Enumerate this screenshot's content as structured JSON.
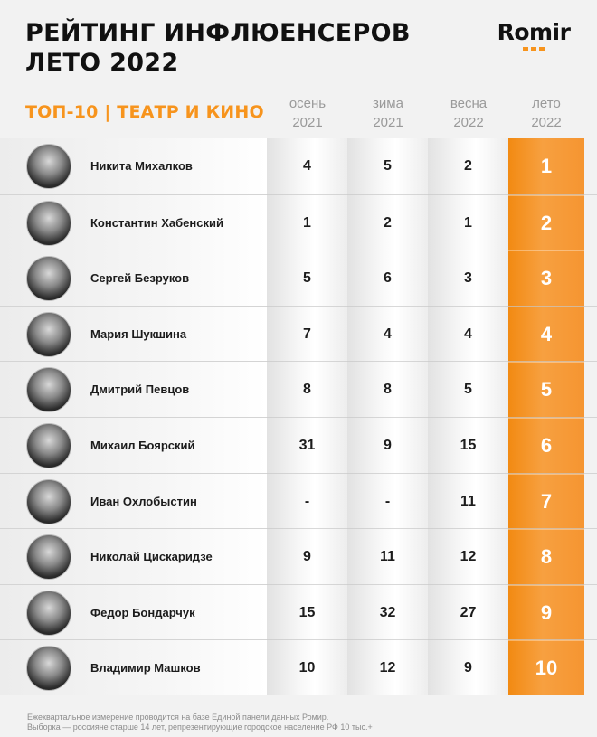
{
  "header": {
    "title_line1": "РЕЙТИНГ ИНФЛЮЕНСЕРОВ",
    "title_line2": "ЛЕТО 2022",
    "logo": "Romir"
  },
  "table": {
    "subtitle": "ТОП-10 | ТЕАТР И КИНО",
    "columns": [
      {
        "season": "осень",
        "year": "2021"
      },
      {
        "season": "зима",
        "year": "2021"
      },
      {
        "season": "весна",
        "year": "2022"
      },
      {
        "season": "лето",
        "year": "2022"
      }
    ],
    "rows": [
      {
        "name": "Никита Михалков",
        "autumn2021": "4",
        "winter2021": "5",
        "spring2022": "2",
        "summer2022": "1"
      },
      {
        "name": "Константин Хабенский",
        "autumn2021": "1",
        "winter2021": "2",
        "spring2022": "1",
        "summer2022": "2"
      },
      {
        "name": "Сергей Безруков",
        "autumn2021": "5",
        "winter2021": "6",
        "spring2022": "3",
        "summer2022": "3"
      },
      {
        "name": "Мария Шукшина",
        "autumn2021": "7",
        "winter2021": "4",
        "spring2022": "4",
        "summer2022": "4"
      },
      {
        "name": "Дмитрий Певцов",
        "autumn2021": "8",
        "winter2021": "8",
        "spring2022": "5",
        "summer2022": "5"
      },
      {
        "name": "Михаил Боярский",
        "autumn2021": "31",
        "winter2021": "9",
        "spring2022": "15",
        "summer2022": "6"
      },
      {
        "name": "Иван Охлобыстин",
        "autumn2021": "-",
        "winter2021": "-",
        "spring2022": "11",
        "summer2022": "7"
      },
      {
        "name": "Николай Цискаридзе",
        "autumn2021": "9",
        "winter2021": "11",
        "spring2022": "12",
        "summer2022": "8"
      },
      {
        "name": "Федор Бондарчук",
        "autumn2021": "15",
        "winter2021": "32",
        "spring2022": "27",
        "summer2022": "9"
      },
      {
        "name": "Владимир Машков",
        "autumn2021": "10",
        "winter2021": "12",
        "spring2022": "9",
        "summer2022": "10"
      }
    ]
  },
  "footnote": {
    "line1": "Ежеквартальное измерение проводится на базе Единой панели данных Ромир.",
    "line2": "Выборка — россияне старше 14 лет, репрезентирующие городское население РФ 10 тыс.+"
  },
  "colors": {
    "accent": "#f7941d",
    "title": "#111111",
    "muted": "#9a9a9a"
  }
}
